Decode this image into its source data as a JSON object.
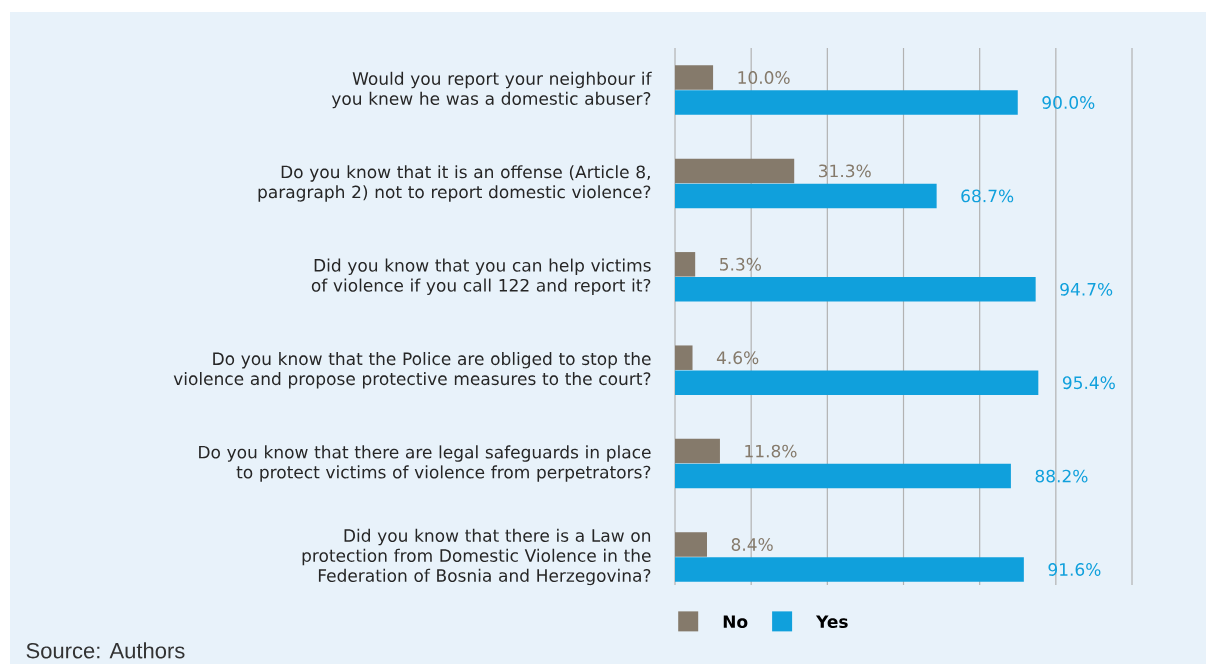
{
  "chart_data": {
    "type": "bar",
    "orientation": "horizontal",
    "categories": [
      "Would you report your neighbour if you knew he was a domestic abuser?",
      "Do you know that it is an offense (Article 8, paragraph 2) not to report domestic violence?",
      "Did you know that you can help victims of violence if you call 122 and report it?",
      "Do you know that the Police are obliged to stop the violence and propose protective measures to the court?",
      "Do you know that there are legal safeguards in place to protect victims of violence from perpetrators?",
      "Did you know that there is a Law on protection from Domestic Violence in the Federation of Bosnia and Herzegovina?"
    ],
    "series": [
      {
        "name": "No",
        "color": "#857a6b",
        "values": [
          10.0,
          31.3,
          5.3,
          4.6,
          11.8,
          8.4
        ],
        "value_labels": [
          "10.0%",
          "31.3%",
          "5.3%",
          "4.6%",
          "11.8%",
          "8.4%"
        ]
      },
      {
        "name": "Yes",
        "color": "#10a0dc",
        "values": [
          90.0,
          68.7,
          94.7,
          95.4,
          88.2,
          91.6
        ],
        "value_labels": [
          "90.0%",
          "68.7%",
          "94.7%",
          "95.4%",
          "88.2%",
          "91.6%"
        ]
      }
    ],
    "xlim": [
      0,
      120
    ],
    "xticks": [
      {
        "value": 0,
        "label": null
      },
      {
        "value": 20,
        "label": null
      },
      {
        "value": 40,
        "label": null
      },
      {
        "value": 60,
        "label": null
      },
      {
        "value": 80,
        "label": null
      },
      {
        "value": 100,
        "label": null
      },
      {
        "value": 120,
        "label": null
      }
    ],
    "tick_labels": "y",
    "grid": "x",
    "legend": "bottom",
    "annotations": [
      "Source: Authors"
    ]
  }
}
